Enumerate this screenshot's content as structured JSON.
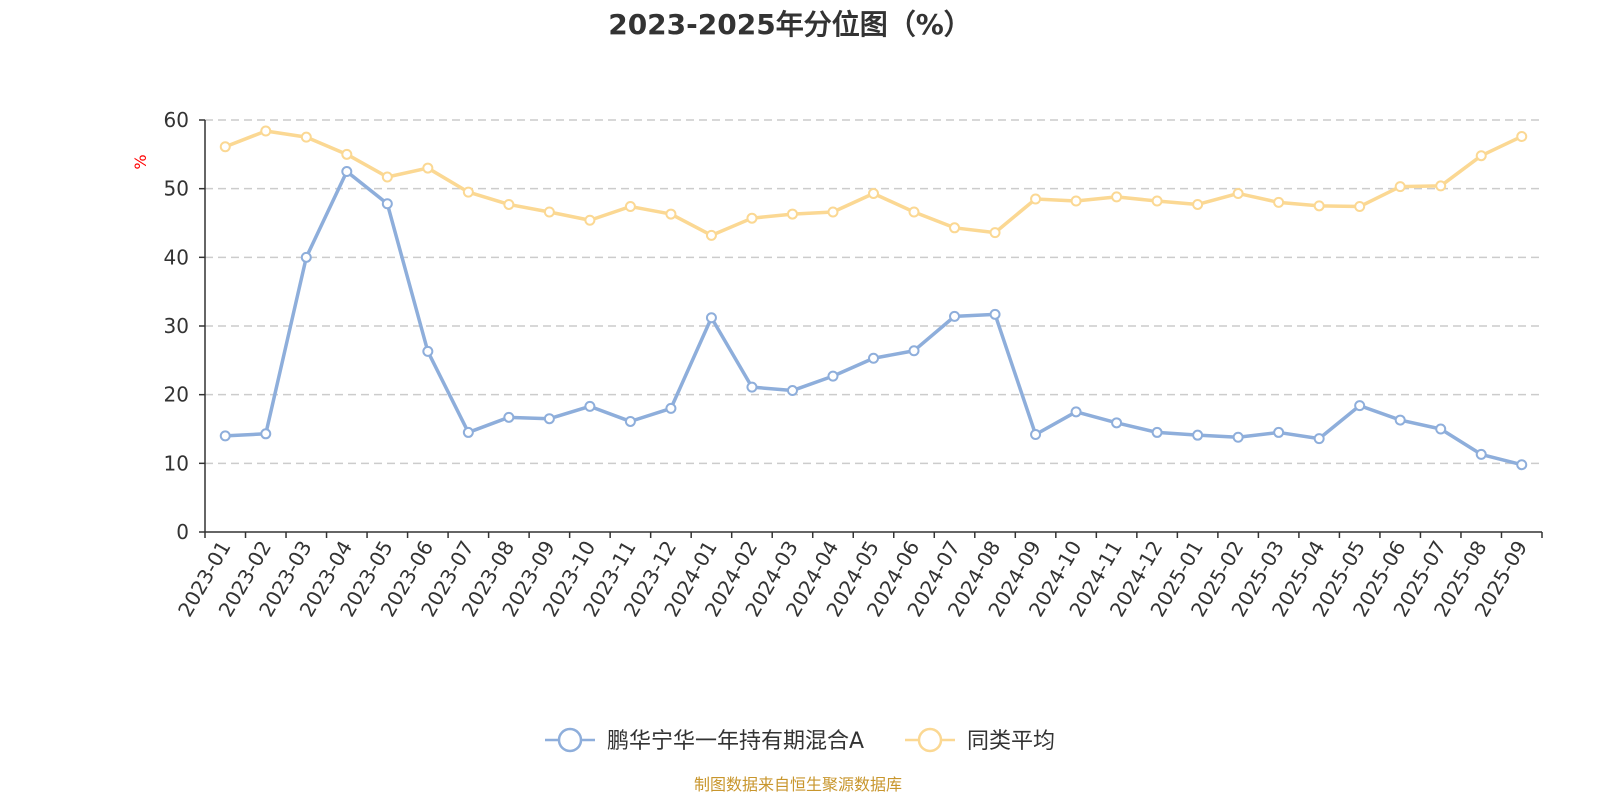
{
  "chart_data": {
    "type": "line",
    "title": "2023-2025年分位图（%）",
    "ylabel": "%",
    "xlabel": "",
    "ylim": [
      0,
      60
    ],
    "yticks": [
      0,
      10,
      20,
      30,
      40,
      50,
      60
    ],
    "grid": true,
    "legend_position": "bottom-center",
    "categories": [
      "2023-01",
      "2023-02",
      "2023-03",
      "2023-04",
      "2023-05",
      "2023-06",
      "2023-07",
      "2023-08",
      "2023-09",
      "2023-10",
      "2023-11",
      "2023-12",
      "2024-01",
      "2024-02",
      "2024-03",
      "2024-04",
      "2024-05",
      "2024-06",
      "2024-07",
      "2024-08",
      "2024-09",
      "2024-10",
      "2024-11",
      "2024-12",
      "2025-01",
      "2025-02",
      "2025-03",
      "2025-04",
      "2025-05",
      "2025-06",
      "2025-07",
      "2025-08",
      "2025-09"
    ],
    "series": [
      {
        "name": "鹏华宁华一年持有期混合A",
        "color": "#8eaedb",
        "values": [
          14.0,
          14.3,
          40.0,
          52.5,
          47.8,
          26.3,
          14.5,
          16.7,
          16.5,
          18.3,
          16.1,
          18.0,
          31.2,
          21.1,
          20.6,
          22.7,
          25.3,
          26.4,
          31.4,
          31.7,
          14.2,
          17.5,
          15.9,
          14.5,
          14.1,
          13.8,
          14.5,
          13.6,
          18.4,
          16.3,
          15.0,
          11.3,
          9.8
        ]
      },
      {
        "name": "同类平均",
        "color": "#fbd893",
        "values": [
          56.1,
          58.4,
          57.5,
          55.0,
          51.7,
          53.0,
          49.5,
          47.7,
          46.6,
          45.4,
          47.4,
          46.3,
          43.2,
          45.7,
          46.3,
          46.6,
          49.3,
          46.6,
          44.3,
          43.6,
          48.5,
          48.2,
          48.8,
          48.2,
          47.7,
          49.3,
          48.0,
          47.5,
          47.4,
          50.3,
          50.4,
          54.8,
          57.6
        ]
      }
    ],
    "source": "制图数据来自恒生聚源数据库"
  },
  "colors": {
    "axis": "#333333",
    "grid": "#cccccc",
    "ylabel": "#ff0000",
    "source": "#c8962d"
  }
}
